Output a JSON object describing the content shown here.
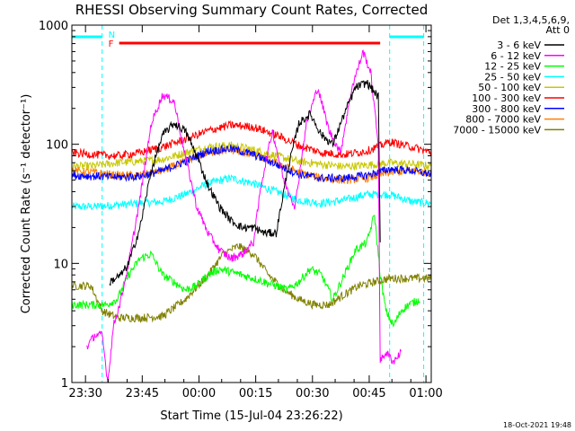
{
  "chart_data": {
    "type": "line",
    "title": "RHESSI Observing Summary Count Rates, Corrected",
    "xlabel": "Start Time (15-Jul-04 23:26:22)",
    "ylabel": "Corrected Count Rate (s⁻¹ detector⁻¹)",
    "x_unit": "minutes since 23:26:22",
    "xlim": [
      0,
      95
    ],
    "ylim": [
      1,
      1000
    ],
    "yscale": "log",
    "x_ticks": [
      {
        "label": "23:30",
        "value": 3.6
      },
      {
        "label": "23:45",
        "value": 18.6
      },
      {
        "label": "00:00",
        "value": 33.6
      },
      {
        "label": "00:15",
        "value": 48.6
      },
      {
        "label": "00:30",
        "value": 63.6
      },
      {
        "label": "00:45",
        "value": 78.6
      },
      {
        "label": "01:00",
        "value": 93.6
      }
    ],
    "y_ticks": [
      {
        "label": "1",
        "value": 1
      },
      {
        "label": "10",
        "value": 10
      },
      {
        "label": "100",
        "value": 100
      },
      {
        "label": "1000",
        "value": 1000
      }
    ],
    "legend_header": [
      "Det 1,3,4,5,6,9,",
      "Att 0"
    ],
    "legend_position": "right",
    "footer_stamp": "18-Oct-2021 19:48",
    "flags": [
      {
        "label": "N",
        "color": "#00ffff"
      },
      {
        "label": "F",
        "color": "#ff0000"
      }
    ],
    "night_intervals": [
      [
        0,
        8
      ],
      [
        84,
        93
      ]
    ],
    "flare_interval": [
      12.5,
      81.5
    ],
    "series": [
      {
        "name": "3 - 6 keV",
        "color": "#000000",
        "x": [
          10,
          13,
          15,
          18,
          21,
          24,
          27,
          30,
          33,
          36,
          39,
          42,
          45,
          48,
          51,
          54,
          57,
          60,
          63,
          66,
          69,
          72,
          75,
          78,
          81,
          81.5
        ],
        "y": [
          7,
          8,
          10,
          20,
          60,
          120,
          150,
          130,
          80,
          45,
          30,
          23,
          20,
          20,
          18,
          18,
          60,
          150,
          180,
          120,
          100,
          180,
          300,
          330,
          250,
          15
        ]
      },
      {
        "name": "6 - 12 keV",
        "color": "#ff00ff",
        "x": [
          4,
          6,
          8,
          9.5,
          11,
          13,
          15,
          18,
          21,
          24,
          27,
          30,
          33,
          36,
          39,
          42,
          45,
          48,
          50,
          53,
          56,
          59,
          62,
          65,
          68,
          71,
          74,
          77,
          79,
          81,
          81.5,
          83,
          85,
          87
        ],
        "y": [
          2,
          2.5,
          2.5,
          1,
          3,
          5,
          10,
          35,
          150,
          260,
          230,
          80,
          30,
          18,
          13,
          11,
          12,
          15,
          45,
          130,
          50,
          30,
          150,
          300,
          130,
          85,
          300,
          600,
          400,
          100,
          1.5,
          1.8,
          1.5,
          1.8
        ]
      },
      {
        "name": "12 - 25 keV",
        "color": "#00ff00",
        "x": [
          0,
          3,
          6,
          9,
          12,
          15,
          18,
          21,
          24,
          27,
          30,
          33,
          36,
          39,
          42,
          45,
          48,
          51,
          54,
          57,
          60,
          63,
          66,
          69,
          72,
          75,
          78,
          80,
          81.5,
          83,
          85,
          87,
          89,
          92
        ],
        "y": [
          4.5,
          4.5,
          4.5,
          4.5,
          5,
          8,
          11,
          12,
          8,
          7,
          6,
          6.5,
          8,
          9,
          8.5,
          8,
          7.5,
          7,
          6.5,
          6,
          7,
          9,
          8,
          5,
          8,
          13,
          15,
          26,
          8,
          4,
          3,
          4,
          4.5,
          5
        ]
      },
      {
        "name": "25 - 50 keV",
        "color": "#00ffff",
        "x": [
          0,
          6,
          12,
          18,
          24,
          30,
          36,
          42,
          48,
          54,
          60,
          66,
          72,
          78,
          84,
          90,
          95
        ],
        "y": [
          30,
          30,
          31,
          32,
          33,
          38,
          47,
          52,
          47,
          40,
          34,
          32,
          34,
          38,
          38,
          33,
          32
        ]
      },
      {
        "name": "50 - 100 keV",
        "color": "#c8c800",
        "x": [
          0,
          6,
          12,
          18,
          24,
          30,
          36,
          42,
          48,
          54,
          60,
          66,
          72,
          78,
          84,
          90,
          95
        ],
        "y": [
          65,
          66,
          70,
          72,
          75,
          85,
          95,
          98,
          90,
          80,
          72,
          68,
          65,
          67,
          70,
          68,
          66
        ]
      },
      {
        "name": "100 - 300 keV",
        "color": "#ff0000",
        "x": [
          0,
          6,
          12,
          18,
          24,
          30,
          36,
          42,
          48,
          54,
          60,
          66,
          72,
          78,
          84,
          90,
          95
        ],
        "y": [
          85,
          82,
          80,
          85,
          95,
          110,
          130,
          145,
          140,
          120,
          98,
          85,
          82,
          88,
          105,
          95,
          85
        ]
      },
      {
        "name": "300 - 800 keV",
        "color": "#0000ff",
        "x": [
          0,
          6,
          12,
          18,
          24,
          30,
          36,
          42,
          48,
          54,
          60,
          66,
          72,
          78,
          84,
          90,
          95
        ],
        "y": [
          55,
          54,
          53,
          54,
          60,
          72,
          88,
          92,
          82,
          68,
          56,
          52,
          52,
          55,
          62,
          60,
          56
        ]
      },
      {
        "name": "800 - 7000 keV",
        "color": "#ff8000",
        "x": [
          0,
          6,
          12,
          18,
          24,
          30,
          36,
          42,
          48,
          54,
          60,
          66,
          72,
          78,
          84,
          90,
          95
        ],
        "y": [
          60,
          58,
          55,
          55,
          60,
          72,
          85,
          90,
          82,
          70,
          58,
          52,
          50,
          52,
          58,
          60,
          58
        ]
      },
      {
        "name": "7000 - 15000 keV",
        "color": "#808000",
        "x": [
          0,
          5,
          8,
          12,
          18,
          24,
          30,
          36,
          40,
          44,
          48,
          52,
          56,
          60,
          64,
          68,
          72,
          76,
          80,
          84,
          88,
          92,
          95
        ],
        "y": [
          6.5,
          6.5,
          4,
          3.5,
          3.5,
          3.6,
          5,
          8,
          12,
          14,
          12,
          8,
          6,
          5,
          4.5,
          4.5,
          5.5,
          6.5,
          7,
          7.5,
          7.5,
          7.5,
          7.5
        ]
      }
    ]
  }
}
